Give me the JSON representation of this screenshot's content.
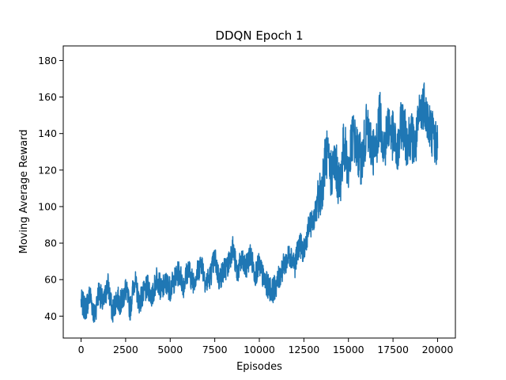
{
  "chart_data": {
    "type": "line",
    "title": "DDQN Epoch 1",
    "xlabel": "Episodes",
    "ylabel": "Moving Average Reward",
    "xlim": [
      -1000,
      21000
    ],
    "ylim": [
      28,
      188
    ],
    "xticks": [
      0,
      2500,
      5000,
      7500,
      10000,
      12500,
      15000,
      17500,
      20000
    ],
    "yticks": [
      40,
      60,
      80,
      100,
      120,
      140,
      160,
      180
    ],
    "grid": false,
    "legend": "none",
    "series": [
      {
        "color": "#1f77b4",
        "x": [
          0,
          250,
          500,
          750,
          1000,
          1250,
          1500,
          1750,
          2000,
          2250,
          2500,
          2750,
          3000,
          3250,
          3500,
          3750,
          4000,
          4250,
          4500,
          4750,
          5000,
          5250,
          5500,
          5750,
          6000,
          6250,
          6500,
          6750,
          7000,
          7250,
          7500,
          7750,
          8000,
          8250,
          8500,
          8750,
          9000,
          9250,
          9500,
          9750,
          10000,
          10250,
          10500,
          10750,
          11000,
          11250,
          11500,
          11750,
          12000,
          12250,
          12500,
          12750,
          13000,
          13250,
          13500,
          13750,
          14000,
          14250,
          14500,
          14750,
          15000,
          15250,
          15500,
          15750,
          16000,
          16250,
          16500,
          16750,
          17000,
          17250,
          17500,
          17750,
          18000,
          18250,
          18500,
          18750,
          19000,
          19250,
          19500,
          19750,
          20000
        ],
        "y": [
          48,
          44,
          52,
          40,
          54,
          46,
          58,
          42,
          50,
          47,
          55,
          44,
          60,
          48,
          52,
          56,
          50,
          62,
          54,
          58,
          55,
          60,
          64,
          57,
          66,
          59,
          63,
          70,
          58,
          62,
          72,
          60,
          65,
          68,
          78,
          64,
          70,
          66,
          74,
          63,
          68,
          60,
          56,
          54,
          58,
          65,
          70,
          74,
          68,
          80,
          75,
          88,
          92,
          100,
          110,
          130,
          118,
          125,
          110,
          135,
          120,
          140,
          130,
          125,
          142,
          135,
          128,
          150,
          132,
          145,
          138,
          128,
          148,
          136,
          140,
          132,
          150,
          158,
          145,
          140,
          132
        ]
      }
    ]
  }
}
